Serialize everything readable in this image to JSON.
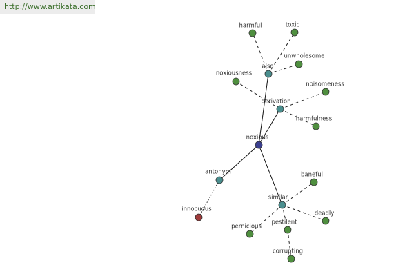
{
  "header": {
    "url": "http://www.artikata.com"
  },
  "nodes": [
    {
      "label": "noxious"
    },
    {
      "label": "also"
    },
    {
      "label": "derivation"
    },
    {
      "label": "antonym"
    },
    {
      "label": "similar"
    },
    {
      "label": "harmful"
    },
    {
      "label": "toxic"
    },
    {
      "label": "unwholesome"
    },
    {
      "label": "noxiousness"
    },
    {
      "label": "noisomeness"
    },
    {
      "label": "harmfulness"
    },
    {
      "label": "baneful"
    },
    {
      "label": "deadly"
    },
    {
      "label": "pernicious"
    },
    {
      "label": "pestilent"
    },
    {
      "label": "corrupting"
    },
    {
      "label": "innocuous"
    }
  ]
}
